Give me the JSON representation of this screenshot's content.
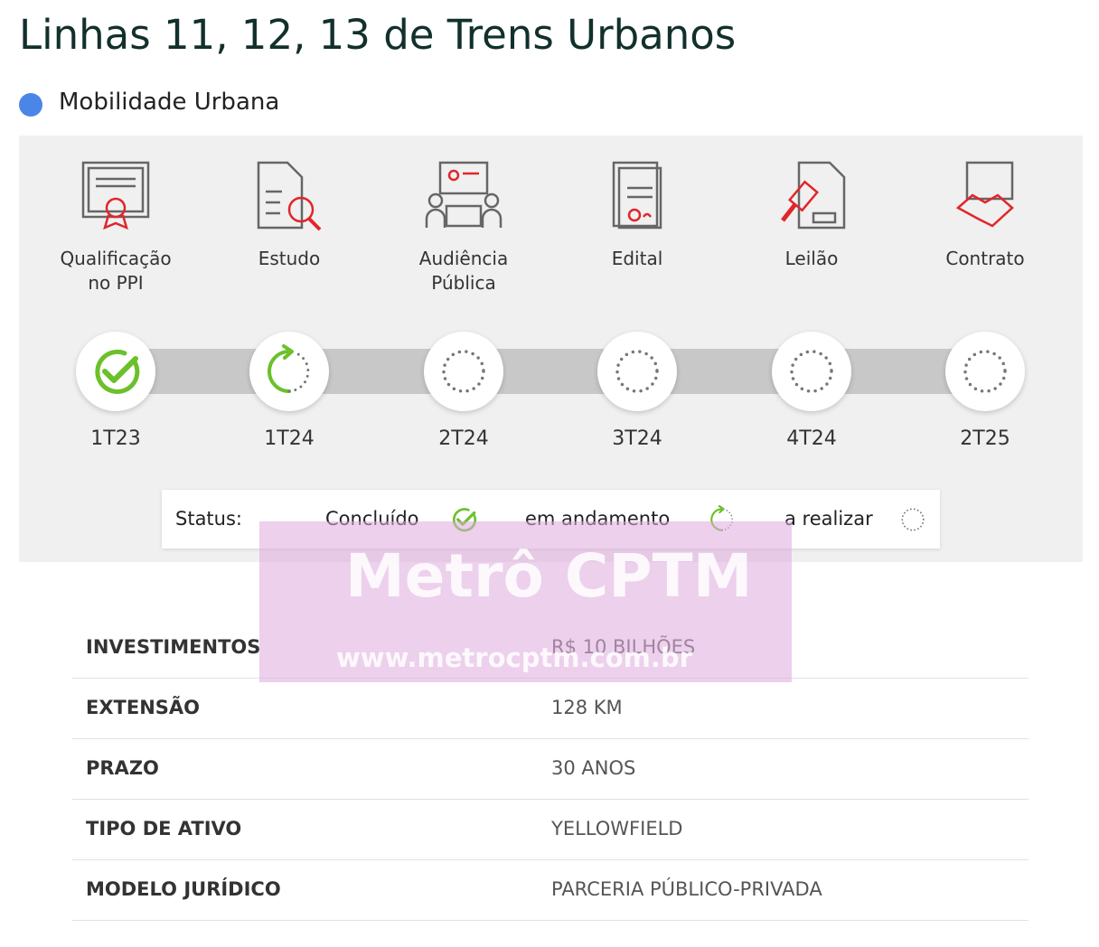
{
  "title": "Linhas 11, 12, 13 de Trens Urbanos",
  "category": "Mobilidade Urbana",
  "stages": [
    {
      "label": [
        "Qualificação",
        "no PPI"
      ],
      "date": "1T23",
      "status": "Concluído"
    },
    {
      "label": [
        "Estudo"
      ],
      "date": "1T24",
      "status": "em andamento"
    },
    {
      "label": [
        "Audiência",
        "Pública"
      ],
      "date": "2T24",
      "status": "a realizar"
    },
    {
      "label": [
        "Edital"
      ],
      "date": "3T24",
      "status": "a realizar"
    },
    {
      "label": [
        "Leilão"
      ],
      "date": "4T24",
      "status": "a realizar"
    },
    {
      "label": [
        "Contrato"
      ],
      "date": "2T25",
      "status": "a realizar"
    }
  ],
  "legend": {
    "title": "Status:",
    "items": [
      "Concluído",
      "em andamento",
      "a realizar"
    ]
  },
  "watermark": {
    "brand": "Metrô CPTM",
    "url": "www.metrocptm.com.br"
  },
  "table": {
    "rows": [
      [
        "INVESTIMENTOS",
        "R$ 10 BILHÕES"
      ],
      [
        "EXTENSÃO",
        "128 KM"
      ],
      [
        "PRAZO",
        "30 ANOS"
      ],
      [
        "TIPO DE ATIVO",
        "YELLOWFIELD"
      ],
      [
        "MODELO JURÍDICO",
        "PARCERIA PÚBLICO-PRIVADA"
      ]
    ]
  }
}
